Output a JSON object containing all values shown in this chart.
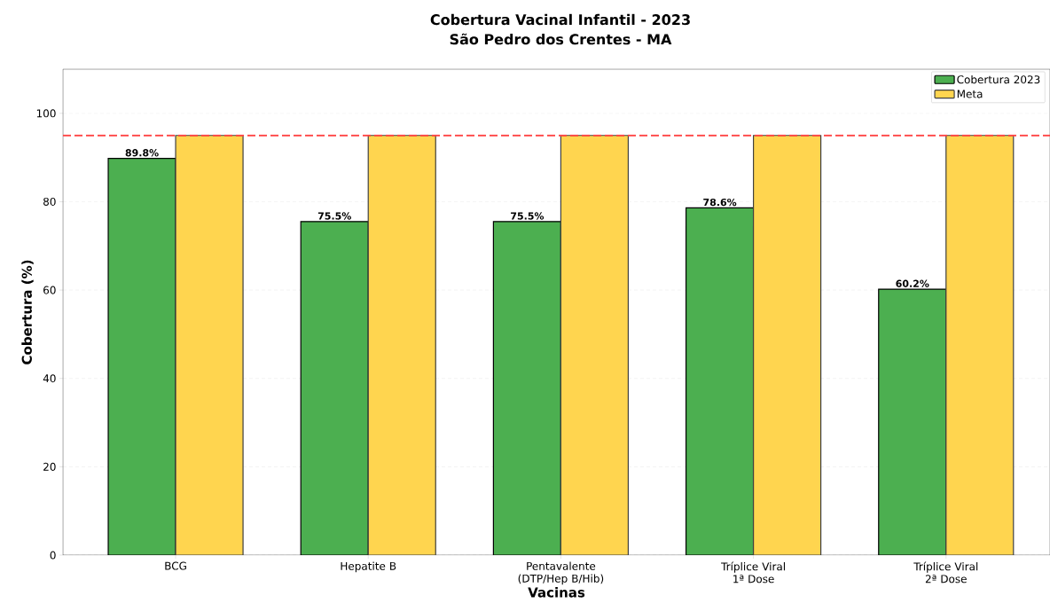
{
  "chart_data": {
    "type": "bar",
    "title": "Cobertura Vacinal Infantil - 2023",
    "subtitle": "São Pedro dos Crentes - MA",
    "xlabel": "Vacinas",
    "ylabel": "Cobertura (%)",
    "categories": [
      "BCG",
      "Hepatite B",
      "Pentavalente (DTP/Hep B/Hib)",
      "Tríplice Viral 1ª Dose",
      "Tríplice Viral 2ª Dose"
    ],
    "series": [
      {
        "name": "Cobertura 2023",
        "color": "#4caf50",
        "values": [
          89.8,
          75.5,
          75.5,
          78.6,
          60.2
        ],
        "value_labels": [
          "89.8%",
          "75.5%",
          "75.5%",
          "78.6%",
          "60.2%"
        ]
      },
      {
        "name": "Meta",
        "color": "#ffd54f",
        "values": [
          95,
          95,
          95,
          95,
          95
        ]
      }
    ],
    "ylim": [
      0,
      110
    ],
    "yticks": [
      0,
      20,
      40,
      60,
      80,
      100
    ],
    "grid": "y",
    "legend": "top right",
    "ref_lines": [
      {
        "axis": "y",
        "value": 95,
        "color": "#ff4444",
        "line_style": "dashed"
      }
    ]
  }
}
